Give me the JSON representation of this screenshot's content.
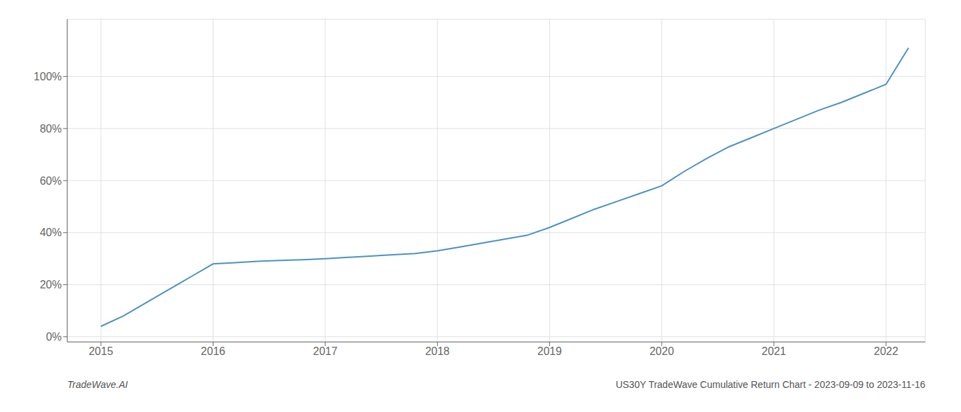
{
  "chart_data": {
    "type": "line",
    "title": "US30Y TradeWave Cumulative Return Chart - 2023-09-09 to 2023-11-16",
    "annotations": [
      "TradeWave.AI"
    ],
    "color": "#4a90c4",
    "grid": true,
    "x": [
      2015.0,
      2015.2,
      2015.4,
      2015.6,
      2015.8,
      2016.0,
      2016.2,
      2016.4,
      2016.6,
      2016.8,
      2017.0,
      2017.2,
      2017.4,
      2017.6,
      2017.8,
      2018.0,
      2018.2,
      2018.4,
      2018.6,
      2018.8,
      2019.0,
      2019.2,
      2019.4,
      2019.6,
      2019.8,
      2020.0,
      2020.2,
      2020.4,
      2020.6,
      2020.8,
      2021.0,
      2021.2,
      2021.4,
      2021.6,
      2021.8,
      2022.0,
      2022.2
    ],
    "values": [
      0.04,
      0.08,
      0.13,
      0.18,
      0.23,
      0.28,
      0.285,
      0.29,
      0.293,
      0.296,
      0.3,
      0.305,
      0.31,
      0.315,
      0.32,
      0.33,
      0.345,
      0.36,
      0.375,
      0.39,
      0.42,
      0.455,
      0.49,
      0.52,
      0.55,
      0.58,
      0.635,
      0.685,
      0.73,
      0.765,
      0.8,
      0.835,
      0.87,
      0.9,
      0.935,
      0.97,
      1.11
    ],
    "xlim": [
      2014.7,
      2022.35
    ],
    "xticks": [
      2015,
      2016,
      2017,
      2018,
      2019,
      2020,
      2021,
      2022
    ],
    "ylim": [
      -0.02,
      1.22
    ],
    "yticks": [
      {
        "value": 0.0,
        "label": "0%"
      },
      {
        "value": 0.2,
        "label": "20%"
      },
      {
        "value": 0.4,
        "label": "40%"
      },
      {
        "value": 0.6,
        "label": "60%"
      },
      {
        "value": 0.8,
        "label": "80%"
      },
      {
        "value": 1.0,
        "label": "100%"
      }
    ]
  }
}
